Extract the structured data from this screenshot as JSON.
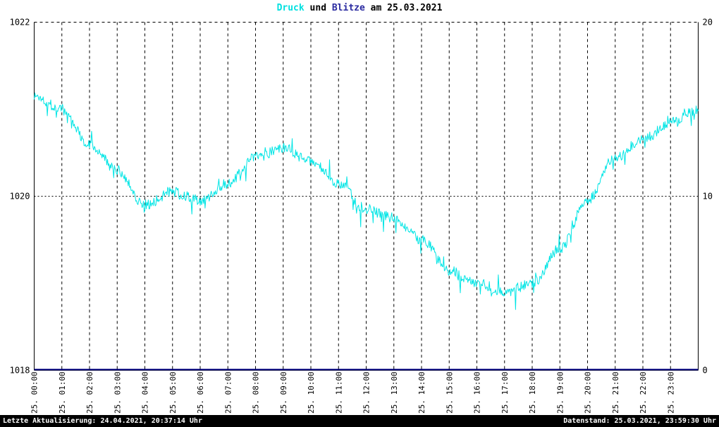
{
  "title": {
    "parts": [
      {
        "text": "Druck",
        "color": "#00e0e0"
      },
      {
        "text": " und ",
        "color": "#000000"
      },
      {
        "text": "Blitze",
        "color": "#2a2aa0"
      },
      {
        "text": " am 25.03.2021",
        "color": "#000000"
      }
    ]
  },
  "footer": {
    "left": "Letzte Aktualisierung: 24.04.2021, 20:37:14 Uhr",
    "right": "Datenstand: 25.03.2021, 23:59:30 Uhr"
  },
  "chart_data": {
    "type": "line",
    "title": "Druck und Blitze am 25.03.2021",
    "x_tick_labels": [
      "25. 00:00",
      "25. 01:00",
      "25. 02:00",
      "25. 03:00",
      "25. 04:00",
      "25. 05:00",
      "25. 06:00",
      "25. 07:00",
      "25. 08:00",
      "25. 09:00",
      "25. 10:00",
      "25. 11:00",
      "25. 12:00",
      "25. 13:00",
      "25. 14:00",
      "25. 15:00",
      "25. 16:00",
      "25. 17:00",
      "25. 18:00",
      "25. 19:00",
      "25. 20:00",
      "25. 21:00",
      "25. 22:00",
      "25. 23:00"
    ],
    "left_axis": {
      "min": 1018,
      "max": 1022,
      "ticks": [
        1018,
        1020,
        1022
      ]
    },
    "right_axis": {
      "min": 0,
      "max": 20,
      "ticks": [
        0,
        10,
        20
      ]
    },
    "grid": {
      "vertical": "hourly dashed",
      "horizontal": "dotted at 1020",
      "legend": "none"
    },
    "series": [
      {
        "name": "Druck",
        "axis": "left",
        "color": "#00e5e5",
        "x_hours": [
          0,
          1,
          2,
          3,
          4,
          5,
          6,
          7,
          8,
          9,
          10,
          11,
          12,
          13,
          14,
          15,
          16,
          17,
          18,
          19,
          20,
          21,
          22,
          23,
          24
        ],
        "values": [
          1021.15,
          1021.0,
          1020.6,
          1020.3,
          1019.9,
          1020.05,
          1019.95,
          1020.15,
          1020.45,
          1020.55,
          1020.4,
          1020.15,
          1019.85,
          1019.75,
          1019.5,
          1019.15,
          1019.0,
          1018.9,
          1019.0,
          1019.4,
          1019.95,
          1020.45,
          1020.65,
          1020.85,
          1021.0
        ]
      },
      {
        "name": "Blitze",
        "axis": "right",
        "color": "#000080",
        "constant_value": 0
      }
    ],
    "noise": {
      "amplitude": 0.06,
      "spike_chance": 0.08,
      "spike_amplitude": 0.18,
      "seed": 1337,
      "points_per_hour": 40
    }
  }
}
